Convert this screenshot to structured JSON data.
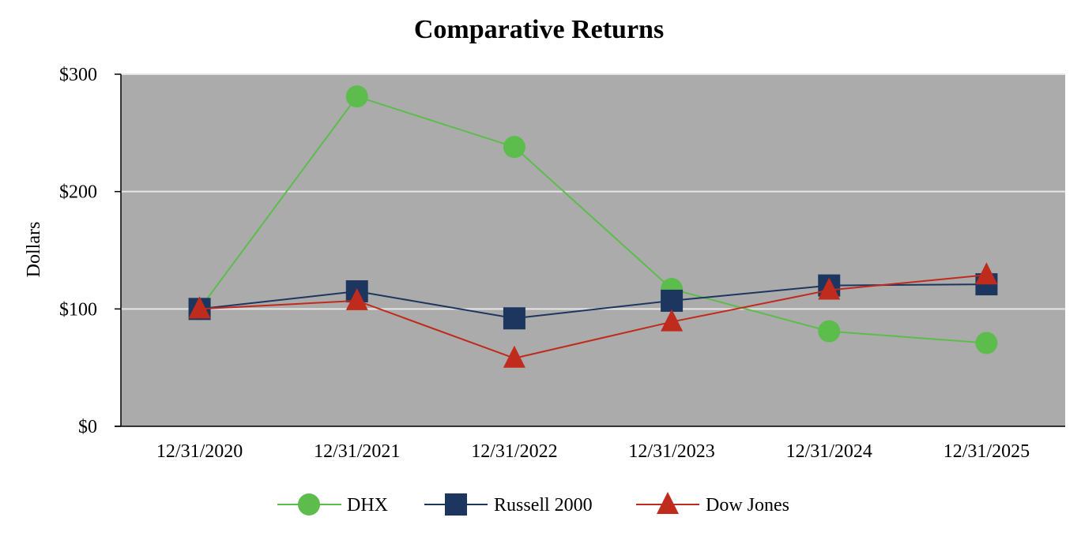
{
  "chart_data": {
    "type": "line",
    "title": "Comparative Returns",
    "xlabel": "",
    "ylabel": "Dollars",
    "categories": [
      "12/31/2020",
      "12/31/2021",
      "12/31/2022",
      "12/31/2023",
      "12/31/2024",
      "12/31/2025"
    ],
    "ylim": [
      0,
      300
    ],
    "yticks": [
      {
        "value": 0,
        "label": "$0"
      },
      {
        "value": 100,
        "label": "$100"
      },
      {
        "value": 200,
        "label": "$200"
      },
      {
        "value": 300,
        "label": "$300"
      }
    ],
    "grid": true,
    "plot_background": "#ababab",
    "grid_color": "#e6e6e6",
    "legend": "bottom",
    "series": [
      {
        "name": "DHX",
        "marker": "circle",
        "color": "#5cbd4c",
        "values": [
          100,
          281,
          238,
          117,
          81,
          71
        ]
      },
      {
        "name": "Russell 2000",
        "marker": "square",
        "color": "#1d365f",
        "values": [
          100,
          115,
          92,
          107,
          120,
          121
        ]
      },
      {
        "name": "Dow Jones",
        "marker": "triangle",
        "color": "#bf2b1d",
        "values": [
          100,
          107,
          58,
          89,
          116,
          129
        ]
      }
    ]
  }
}
